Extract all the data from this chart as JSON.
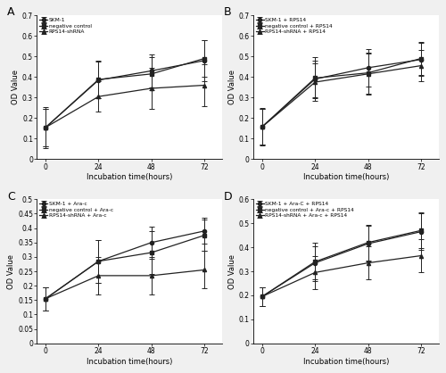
{
  "subplot_A": {
    "label": "A",
    "x": [
      0,
      24,
      48,
      72
    ],
    "series": [
      {
        "name": "SKM-1",
        "y": [
          0.155,
          0.385,
          0.43,
          0.48
        ],
        "yerr": [
          0.1,
          0.09,
          0.08,
          0.1
        ],
        "marker": "o",
        "linestyle": "-"
      },
      {
        "name": "negative control",
        "y": [
          0.155,
          0.388,
          0.415,
          0.49
        ],
        "yerr": [
          0.09,
          0.09,
          0.08,
          0.09
        ],
        "marker": "s",
        "linestyle": "-"
      },
      {
        "name": "RPS14-shRNA",
        "y": [
          0.155,
          0.305,
          0.345,
          0.36
        ],
        "yerr": [
          0.09,
          0.075,
          0.1,
          0.1
        ],
        "marker": "^",
        "linestyle": "-"
      }
    ],
    "ylim": [
      0,
      0.7
    ],
    "yticks": [
      0,
      0.1,
      0.2,
      0.3,
      0.4,
      0.5,
      0.6,
      0.7
    ],
    "xlabel": "Incubation time(hours)",
    "ylabel": "OD Value"
  },
  "subplot_B": {
    "label": "B",
    "x": [
      0,
      24,
      48,
      72
    ],
    "series": [
      {
        "name": "SKM-1 + RPS14",
        "y": [
          0.158,
          0.39,
          0.445,
          0.485
        ],
        "yerr": [
          0.09,
          0.09,
          0.09,
          0.08
        ],
        "marker": "o",
        "linestyle": "-"
      },
      {
        "name": "negative control + RPS14",
        "y": [
          0.158,
          0.395,
          0.42,
          0.49
        ],
        "yerr": [
          0.085,
          0.1,
          0.1,
          0.08
        ],
        "marker": "s",
        "linestyle": "-"
      },
      {
        "name": "RPS14-shRNA + RPS14",
        "y": [
          0.158,
          0.375,
          0.415,
          0.455
        ],
        "yerr": [
          0.085,
          0.09,
          0.1,
          0.075
        ],
        "marker": "^",
        "linestyle": "-"
      }
    ],
    "ylim": [
      0,
      0.7
    ],
    "yticks": [
      0,
      0.1,
      0.2,
      0.3,
      0.4,
      0.5,
      0.6,
      0.7
    ],
    "xlabel": "Incubation time(hours)",
    "ylabel": "OD Value"
  },
  "subplot_C": {
    "label": "C",
    "x": [
      0,
      24,
      48,
      72
    ],
    "series": [
      {
        "name": "SKM-1 + Ara-c",
        "y": [
          0.155,
          0.285,
          0.35,
          0.39
        ],
        "yerr": [
          0.04,
          0.075,
          0.055,
          0.045
        ],
        "marker": "o",
        "linestyle": "-"
      },
      {
        "name": "negative control + Ara-c",
        "y": [
          0.155,
          0.285,
          0.315,
          0.375
        ],
        "yerr": [
          0.04,
          0.075,
          0.075,
          0.055
        ],
        "marker": "s",
        "linestyle": "-"
      },
      {
        "name": "RPS14-shRNA + Ara-c",
        "y": [
          0.155,
          0.235,
          0.235,
          0.255
        ],
        "yerr": [
          0.04,
          0.065,
          0.065,
          0.065
        ],
        "marker": "^",
        "linestyle": "-"
      }
    ],
    "ylim": [
      0,
      0.5
    ],
    "yticks": [
      0,
      0.05,
      0.1,
      0.15,
      0.2,
      0.25,
      0.3,
      0.35,
      0.4,
      0.45,
      0.5
    ],
    "xlabel": "Incubation time(hours)",
    "ylabel": "OD Value"
  },
  "subplot_D": {
    "label": "D",
    "x": [
      0,
      24,
      48,
      72
    ],
    "series": [
      {
        "name": "SKM-1 + Ara-C + RPS14",
        "y": [
          0.195,
          0.335,
          0.415,
          0.465
        ],
        "yerr": [
          0.04,
          0.07,
          0.075,
          0.075
        ],
        "marker": "o",
        "linestyle": "-"
      },
      {
        "name": "negative control + Ara-c + RPS14",
        "y": [
          0.195,
          0.34,
          0.42,
          0.47
        ],
        "yerr": [
          0.04,
          0.08,
          0.075,
          0.075
        ],
        "marker": "s",
        "linestyle": "-"
      },
      {
        "name": "RPS14-shRNA + Ara-c + RPS14",
        "y": [
          0.195,
          0.295,
          0.335,
          0.365
        ],
        "yerr": [
          0.04,
          0.07,
          0.07,
          0.07
        ],
        "marker": "^",
        "linestyle": "-"
      }
    ],
    "ylim": [
      0,
      0.6
    ],
    "yticks": [
      0,
      0.1,
      0.2,
      0.3,
      0.4,
      0.5,
      0.6
    ],
    "xlabel": "Incubation time(hours)",
    "ylabel": "OD Value"
  },
  "line_color": "#222222",
  "bg_color": "#f0f0f0",
  "plot_bg": "#ffffff",
  "figsize": [
    5.0,
    4.18
  ],
  "dpi": 100
}
